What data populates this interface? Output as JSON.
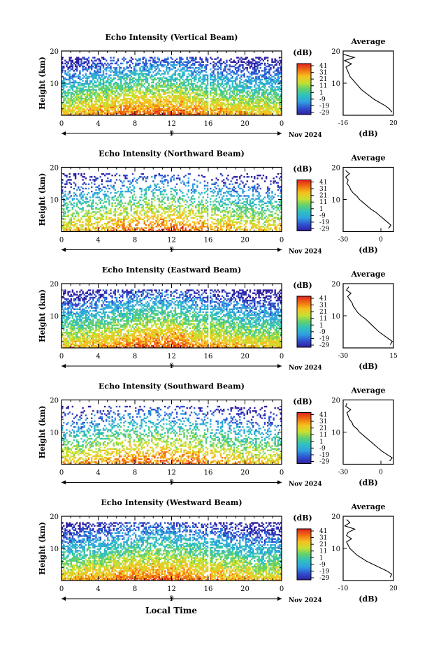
{
  "figure": {
    "x_axis_label": "Local Time",
    "date_label": "Nov 2024",
    "day_marker": "9",
    "colorbar_unit": "(dB)",
    "colorbar_ticks": [
      "41",
      "31",
      "21",
      "11",
      "1",
      "-9",
      "-19",
      "-29"
    ],
    "colorscale": [
      "#e02020",
      "#f07010",
      "#f5c020",
      "#c8e030",
      "#60d070",
      "#30c0c0",
      "#30a0e0",
      "#3050d0",
      "#3020a0"
    ],
    "average_title": "Average",
    "average_xlabel": "(dB)",
    "height_label": "Height (km)"
  },
  "chart_data": [
    {
      "type": "heatmap",
      "title": "Echo Intensity (Vertical Beam)",
      "ylabel": "Height (km)",
      "ylim": [
        0,
        20
      ],
      "y_ticks": [
        "20",
        "10"
      ],
      "xlim": [
        0,
        24
      ],
      "x_ticks": [
        "0",
        "4",
        "8",
        "12",
        "16",
        "20",
        "0"
      ],
      "zlim": [
        -29,
        41
      ],
      "cloud_top_km": 18,
      "data_gap_hours": [
        16,
        16.2
      ],
      "average_profile": {
        "xlim": [
          -16,
          20
        ],
        "x_ticks": [
          "-16",
          "20"
        ],
        "height_km": [
          1,
          2,
          3,
          4,
          5,
          6,
          7,
          8,
          9,
          10,
          11,
          12,
          13,
          14,
          15,
          16,
          17,
          18,
          19
        ],
        "db": [
          19,
          17,
          14,
          10,
          6,
          3,
          0,
          -3,
          -5,
          -7,
          -9,
          -11,
          -12,
          -13,
          -14,
          -10,
          -15,
          -8,
          -16
        ]
      }
    },
    {
      "type": "heatmap",
      "title": "Echo Intensity (Northward Beam)",
      "ylabel": "Height (km)",
      "ylim": [
        0,
        20
      ],
      "y_ticks": [
        "20",
        "10"
      ],
      "xlim": [
        0,
        24
      ],
      "x_ticks": [
        "0",
        "4",
        "8",
        "12",
        "16",
        "20",
        "0"
      ],
      "zlim": [
        -29,
        41
      ],
      "cloud_top_km": 18,
      "data_gap_hours": [
        16,
        16.2
      ],
      "average_profile": {
        "xlim": [
          -30,
          10
        ],
        "x_ticks": [
          "-30",
          "0"
        ],
        "height_km": [
          1,
          2,
          3,
          4,
          5,
          6,
          7,
          8,
          9,
          10,
          11,
          12,
          13,
          14,
          15,
          16,
          17,
          18,
          19
        ],
        "db": [
          6,
          8,
          5,
          2,
          -1,
          -4,
          -8,
          -11,
          -14,
          -17,
          -19,
          -22,
          -24,
          -25,
          -27,
          -26,
          -28,
          -25,
          -28
        ]
      }
    },
    {
      "type": "heatmap",
      "title": "Echo Intensity (Eastward Beam)",
      "ylabel": "Height (km)",
      "ylim": [
        0,
        20
      ],
      "y_ticks": [
        "20",
        "10"
      ],
      "xlim": [
        0,
        24
      ],
      "x_ticks": [
        "0",
        "4",
        "8",
        "12",
        "16",
        "20",
        "0"
      ],
      "zlim": [
        -29,
        41
      ],
      "cloud_top_km": 18,
      "data_gap_hours": [
        16,
        16.2
      ],
      "average_profile": {
        "xlim": [
          -30,
          15
        ],
        "x_ticks": [
          "-30",
          "15"
        ],
        "height_km": [
          1,
          2,
          3,
          4,
          5,
          6,
          7,
          8,
          9,
          10,
          11,
          12,
          13,
          14,
          15,
          16,
          17,
          18,
          19
        ],
        "db": [
          12,
          14,
          10,
          6,
          2,
          -1,
          -4,
          -7,
          -10,
          -14,
          -17,
          -19,
          -21,
          -22,
          -24,
          -26,
          -23,
          -27,
          -25
        ]
      }
    },
    {
      "type": "heatmap",
      "title": "Echo Intensity (Southward Beam)",
      "ylabel": "Height (km)",
      "ylim": [
        0,
        20
      ],
      "y_ticks": [
        "20",
        "10"
      ],
      "xlim": [
        0,
        24
      ],
      "x_ticks": [
        "0",
        "4",
        "8",
        "12",
        "16",
        "20",
        "0"
      ],
      "zlim": [
        -29,
        41
      ],
      "cloud_top_km": 18,
      "data_gap_hours": [
        16,
        16.2
      ],
      "average_profile": {
        "xlim": [
          -30,
          10
        ],
        "x_ticks": [
          "-30",
          "0"
        ],
        "height_km": [
          1,
          2,
          3,
          4,
          5,
          6,
          7,
          8,
          9,
          10,
          11,
          12,
          13,
          14,
          15,
          16,
          17,
          18,
          19
        ],
        "db": [
          7,
          9,
          5,
          1,
          -2,
          -5,
          -8,
          -11,
          -14,
          -17,
          -19,
          -22,
          -23,
          -25,
          -26,
          -27,
          -24,
          -28,
          -27
        ]
      }
    },
    {
      "type": "heatmap",
      "title": "Echo Intensity (Westward Beam)",
      "ylabel": "Height (km)",
      "ylim": [
        0,
        20
      ],
      "y_ticks": [
        "20",
        "10"
      ],
      "xlim": [
        0,
        24
      ],
      "x_ticks": [
        "0",
        "4",
        "8",
        "12",
        "16",
        "20",
        "0"
      ],
      "zlim": [
        -29,
        41
      ],
      "cloud_top_km": 18,
      "data_gap_hours": [
        16,
        16.2
      ],
      "average_profile": {
        "xlim": [
          -10,
          20
        ],
        "x_ticks": [
          "-10",
          "20"
        ],
        "height_km": [
          1,
          2,
          3,
          4,
          5,
          6,
          7,
          8,
          9,
          10,
          11,
          12,
          13,
          14,
          15,
          16,
          17,
          18,
          19
        ],
        "db": [
          18,
          19,
          16,
          12,
          8,
          4,
          1,
          -2,
          -4,
          -6,
          -7,
          -8,
          -5,
          -8,
          -7,
          -3,
          -9,
          -6,
          -8
        ]
      }
    }
  ]
}
